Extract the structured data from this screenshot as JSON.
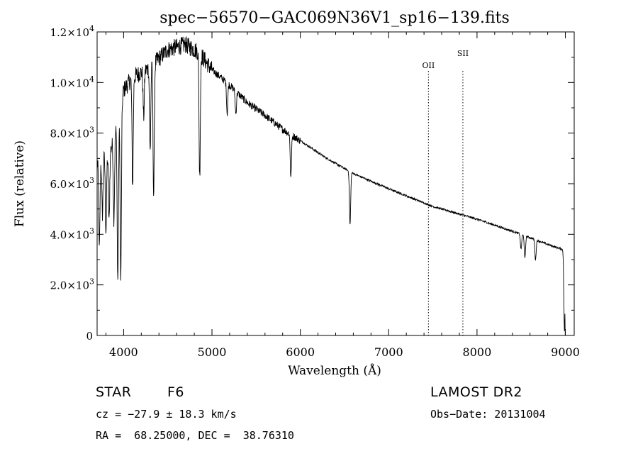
{
  "chart_data": {
    "type": "line",
    "title": "spec−56570−GAC069N36V1_sp16−139.fits",
    "xlabel": "Wavelength (Å)",
    "ylabel": "Flux (relative)",
    "xlim": [
      3700,
      9100
    ],
    "ylim": [
      0,
      12000
    ],
    "x_ticks": [
      4000,
      5000,
      6000,
      7000,
      8000,
      9000
    ],
    "x_tick_labels": [
      "4000",
      "5000",
      "6000",
      "7000",
      "8000",
      "9000"
    ],
    "y_ticks": [
      0,
      2000,
      4000,
      6000,
      8000,
      10000,
      12000
    ],
    "y_tick_labels": [
      {
        "mant": "0",
        "exp": ""
      },
      {
        "mant": "2.0×10",
        "exp": "3"
      },
      {
        "mant": "4.0×10",
        "exp": "3"
      },
      {
        "mant": "6.0×10",
        "exp": "3"
      },
      {
        "mant": "8.0×10",
        "exp": "3"
      },
      {
        "mant": "1.0×10",
        "exp": "4"
      },
      {
        "mant": "1.2×10",
        "exp": "4"
      }
    ],
    "continuum": [
      [
        3700,
        6800
      ],
      [
        3850,
        7300
      ],
      [
        3950,
        8600
      ],
      [
        4000,
        9700
      ],
      [
        4100,
        10200
      ],
      [
        4300,
        10600
      ],
      [
        4500,
        11300
      ],
      [
        4700,
        11500
      ],
      [
        4850,
        11200
      ],
      [
        5000,
        10500
      ],
      [
        5200,
        9900
      ],
      [
        5400,
        9200
      ],
      [
        5600,
        8700
      ],
      [
        5800,
        8150
      ],
      [
        6000,
        7700
      ],
      [
        6300,
        7000
      ],
      [
        6600,
        6400
      ],
      [
        7000,
        5800
      ],
      [
        7500,
        5100
      ],
      [
        8000,
        4600
      ],
      [
        8500,
        4000
      ],
      [
        8800,
        3600
      ],
      [
        8970,
        3400
      ],
      [
        9000,
        3300
      ]
    ],
    "absorption_lines": [
      {
        "x": 3725,
        "depth": 3500
      },
      {
        "x": 3760,
        "depth": 2200
      },
      {
        "x": 3800,
        "depth": 3000
      },
      {
        "x": 3835,
        "depth": 2800
      },
      {
        "x": 3890,
        "depth": 3200
      },
      {
        "x": 3934,
        "depth": 6300
      },
      {
        "x": 3968,
        "depth": 6800
      },
      {
        "x": 4102,
        "depth": 4300
      },
      {
        "x": 4227,
        "depth": 1800
      },
      {
        "x": 4300,
        "depth": 3300
      },
      {
        "x": 4340,
        "depth": 5200
      },
      {
        "x": 4861,
        "depth": 4900
      },
      {
        "x": 5172,
        "depth": 1200
      },
      {
        "x": 5270,
        "depth": 900
      },
      {
        "x": 5893,
        "depth": 1700
      },
      {
        "x": 6563,
        "depth": 2100
      },
      {
        "x": 8498,
        "depth": 600
      },
      {
        "x": 8542,
        "depth": 900
      },
      {
        "x": 8662,
        "depth": 800
      },
      {
        "x": 8990,
        "depth": 3200
      }
    ],
    "emission_markers": [
      {
        "label": "OII",
        "x": 7450
      },
      {
        "label": "SII",
        "x": 7840
      }
    ]
  },
  "info": {
    "object_class": "STAR",
    "subclass": "F6",
    "survey": "LAMOST DR2",
    "cz": "cz = −27.9 ± 18.3 km/s",
    "obs_date": "Obs−Date: 20131004",
    "coords": "RA =  68.25000, DEC =  38.76310"
  }
}
